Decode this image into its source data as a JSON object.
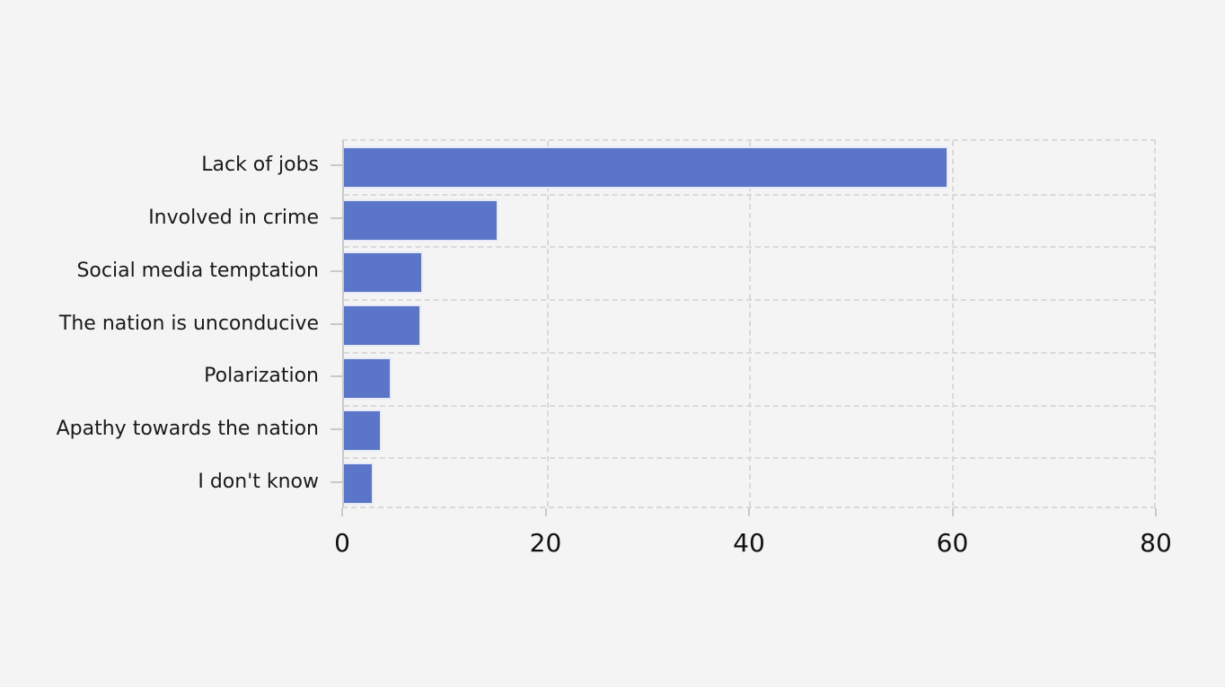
{
  "chart_data": {
    "type": "bar",
    "orientation": "horizontal",
    "title": "",
    "xlabel": "",
    "ylabel": "",
    "categories": [
      "Lack of jobs",
      "Involved in crime",
      "Social media temptation",
      "The nation is unconducive",
      "Polarization",
      "Apathy towards the nation",
      "I don't know"
    ],
    "values": [
      59.4,
      15.2,
      7.8,
      7.6,
      4.7,
      3.7,
      2.9
    ],
    "xlim": [
      0,
      80
    ],
    "xticks": [
      0,
      20,
      40,
      60,
      80
    ],
    "grid": "dashed",
    "legend": "none",
    "colors": {
      "background": "#f4f4f4",
      "bar": "#5b76c8",
      "bar_border": "#e7eaf8",
      "gridline": "#d9d9d9",
      "axis_line": "#c9c9c9",
      "text": "#1a1a1a"
    }
  }
}
